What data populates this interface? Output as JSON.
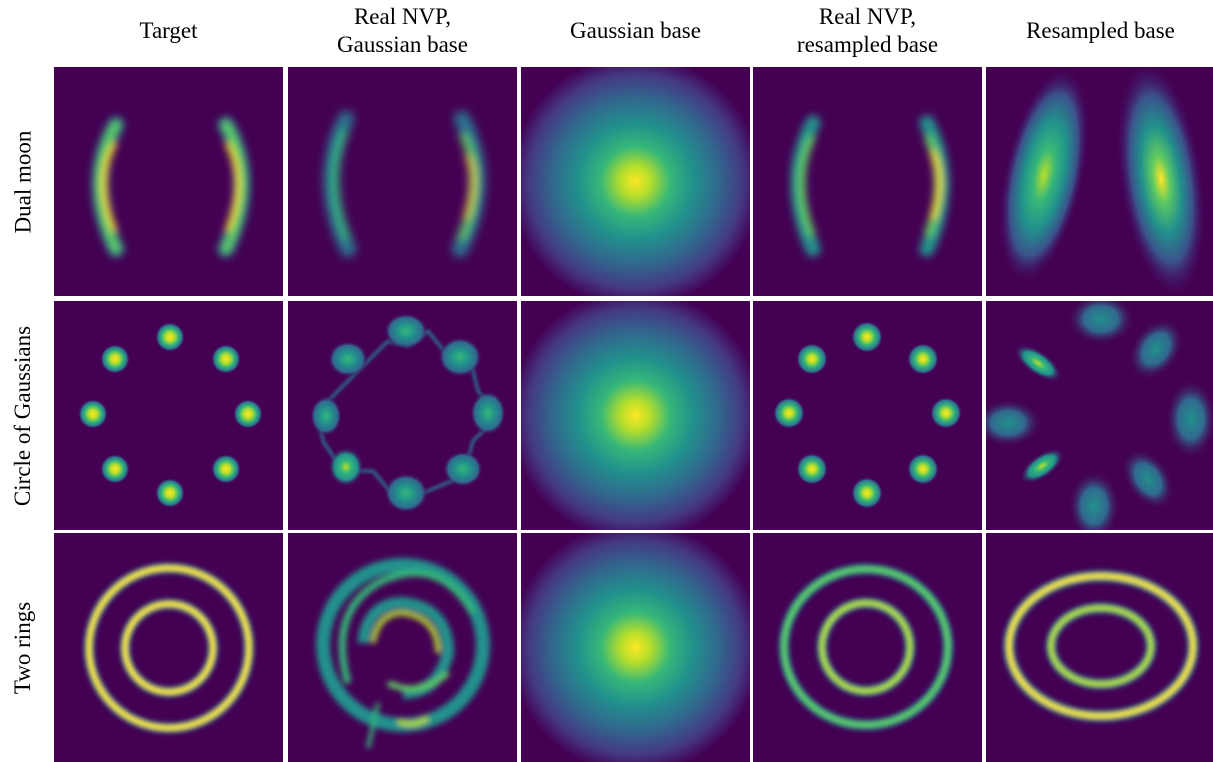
{
  "figure": {
    "columns": [
      {
        "id": "target",
        "label": "Target"
      },
      {
        "id": "realnvp_gauss",
        "label": "Real NVP,\nGaussian base"
      },
      {
        "id": "gauss",
        "label": "Gaussian base"
      },
      {
        "id": "realnvp_resampled",
        "label": "Real NVP,\nresampled base"
      },
      {
        "id": "resampled",
        "label": "Resampled base"
      }
    ],
    "rows": [
      {
        "id": "dual_moon",
        "label": "Dual moon"
      },
      {
        "id": "circle_gaussians",
        "label": "Circle of Gaussians"
      },
      {
        "id": "two_rings",
        "label": "Two rings"
      }
    ],
    "colormap": {
      "name": "viridis",
      "low": "#440154",
      "mid_dark": "#31688e",
      "mid": "#21918c",
      "mid_light": "#5ec962",
      "high": "#fde725"
    }
  }
}
